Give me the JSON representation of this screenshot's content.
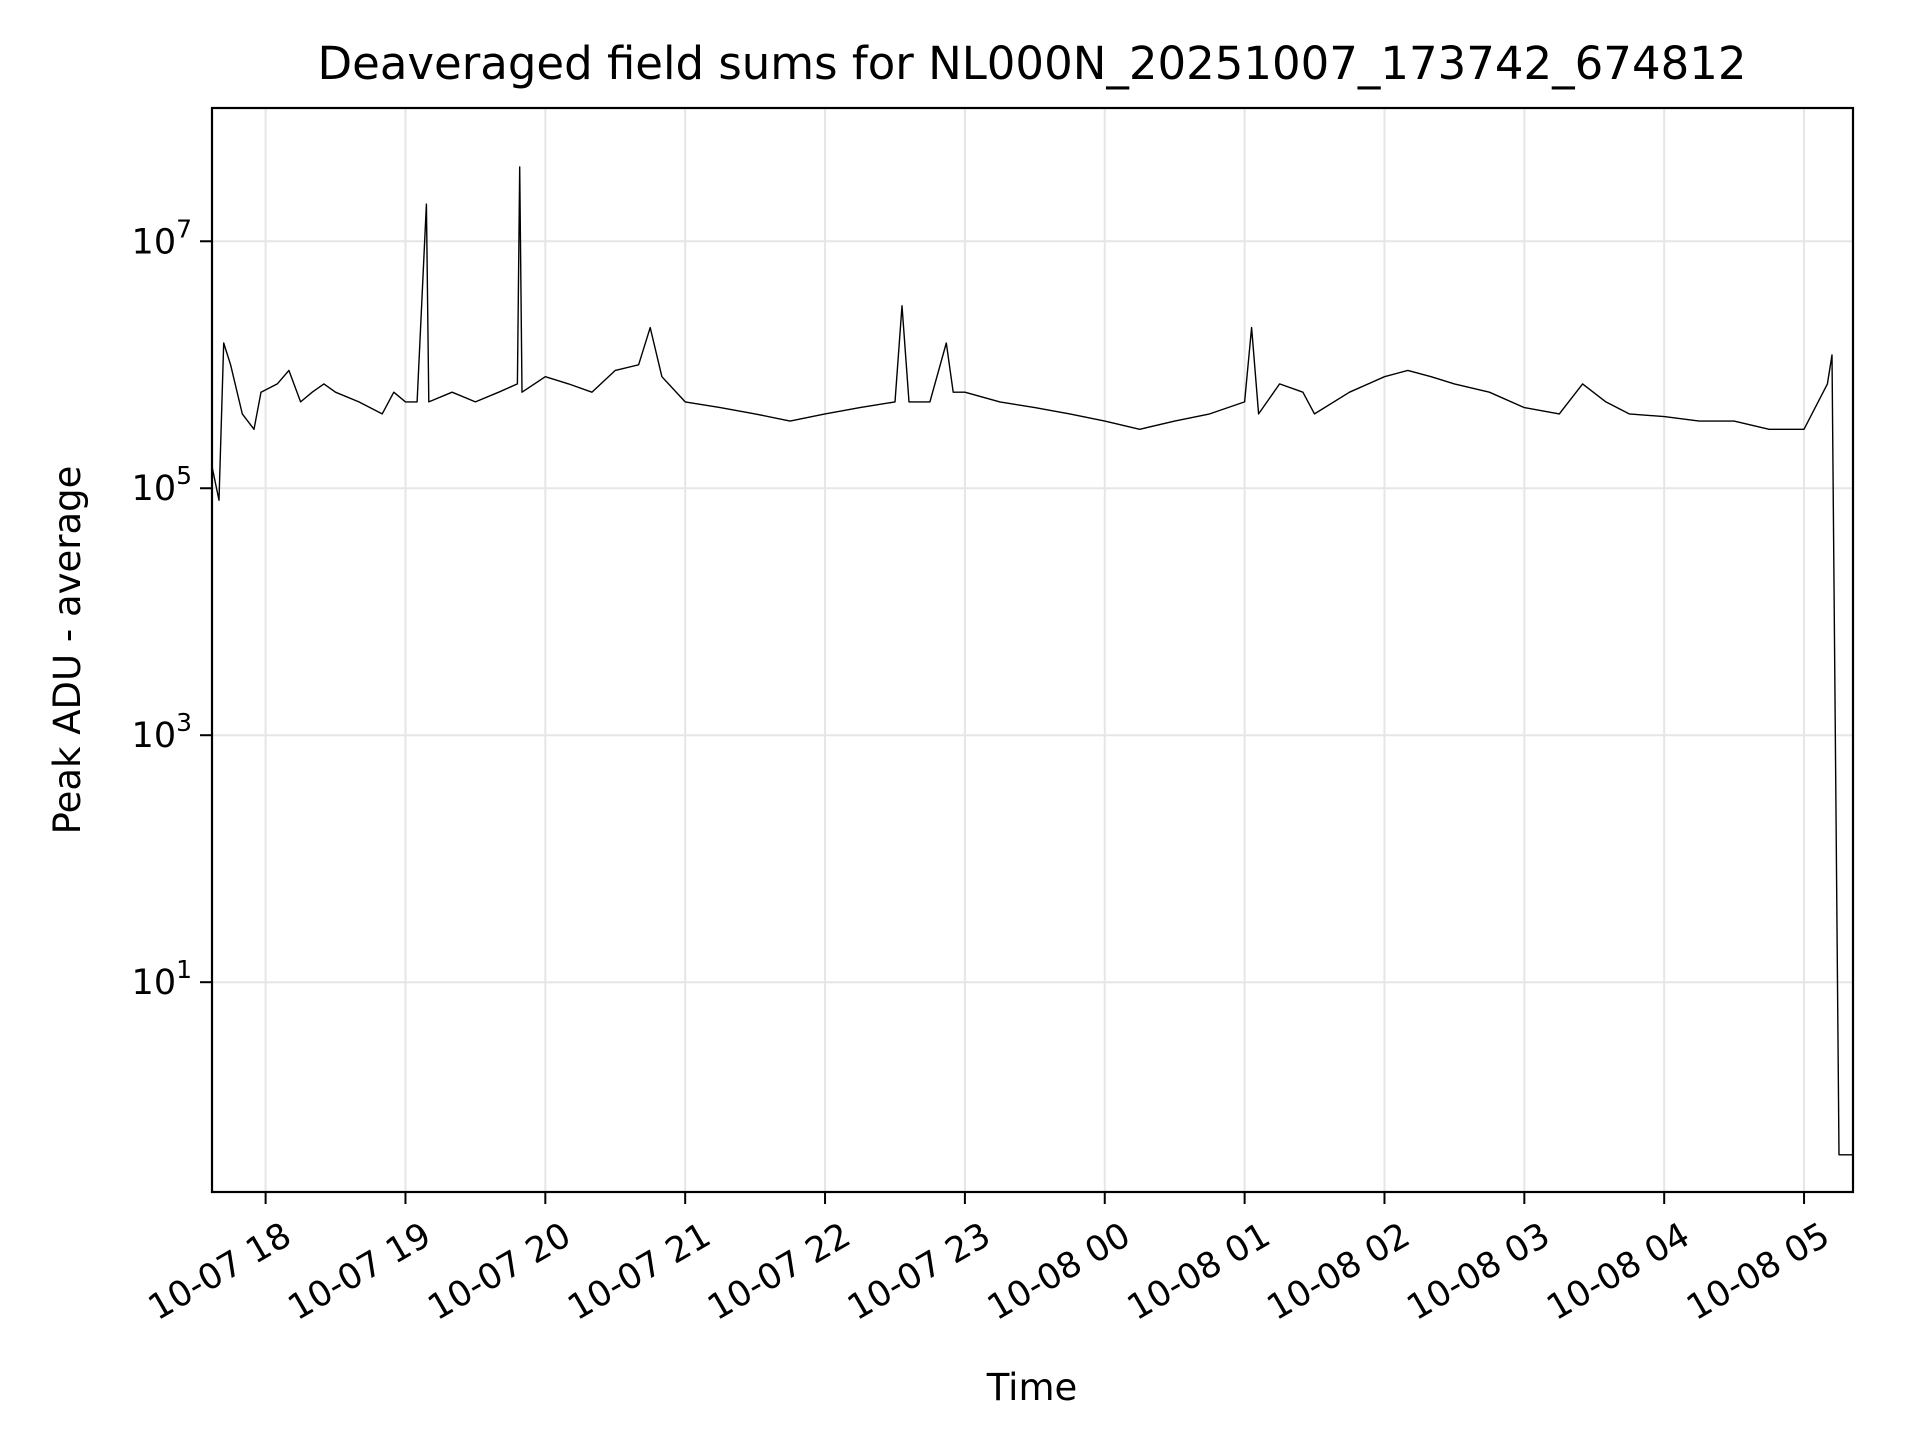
{
  "chart_data": {
    "type": "line",
    "title": "Deaveraged field sums for NL000N_20251007_173742_674812",
    "xlabel": "Time",
    "ylabel": "Peak ADU - average",
    "yscale": "log",
    "ylim": [
      0.2,
      120000000
    ],
    "xlim": [
      "2025-10-07 17:37",
      "2025-10-08 05:21"
    ],
    "grid": true,
    "line_color": "#000000",
    "yticks": [
      {
        "base": "10",
        "exp": "1",
        "value": 10
      },
      {
        "base": "10",
        "exp": "3",
        "value": 1000
      },
      {
        "base": "10",
        "exp": "5",
        "value": 100000
      },
      {
        "base": "10",
        "exp": "7",
        "value": 10000000
      }
    ],
    "xticks": [
      {
        "label": "10-07 18",
        "value": "2025-10-07 18:00"
      },
      {
        "label": "10-07 19",
        "value": "2025-10-07 19:00"
      },
      {
        "label": "10-07 20",
        "value": "2025-10-07 20:00"
      },
      {
        "label": "10-07 21",
        "value": "2025-10-07 21:00"
      },
      {
        "label": "10-07 22",
        "value": "2025-10-07 22:00"
      },
      {
        "label": "10-07 23",
        "value": "2025-10-07 23:00"
      },
      {
        "label": "10-08 00",
        "value": "2025-10-08 00:00"
      },
      {
        "label": "10-08 01",
        "value": "2025-10-08 01:00"
      },
      {
        "label": "10-08 02",
        "value": "2025-10-08 02:00"
      },
      {
        "label": "10-08 03",
        "value": "2025-10-08 03:00"
      },
      {
        "label": "10-08 04",
        "value": "2025-10-08 04:00"
      },
      {
        "label": "10-08 05",
        "value": "2025-10-08 05:00"
      }
    ],
    "series": [
      {
        "x": [
          "2025-10-07 17:37",
          "2025-10-07 17:40",
          "2025-10-07 17:42",
          "2025-10-07 17:45",
          "2025-10-07 17:50",
          "2025-10-07 17:55",
          "2025-10-07 17:58",
          "2025-10-07 18:05",
          "2025-10-07 18:10",
          "2025-10-07 18:15",
          "2025-10-07 18:20",
          "2025-10-07 18:25",
          "2025-10-07 18:30",
          "2025-10-07 18:40",
          "2025-10-07 18:50",
          "2025-10-07 18:55",
          "2025-10-07 19:00",
          "2025-10-07 19:05",
          "2025-10-07 19:09",
          "2025-10-07 19:10",
          "2025-10-07 19:20",
          "2025-10-07 19:30",
          "2025-10-07 19:40",
          "2025-10-07 19:48",
          "2025-10-07 19:49",
          "2025-10-07 19:50",
          "2025-10-07 20:00",
          "2025-10-07 20:10",
          "2025-10-07 20:20",
          "2025-10-07 20:30",
          "2025-10-07 20:40",
          "2025-10-07 20:45",
          "2025-10-07 20:50",
          "2025-10-07 21:00",
          "2025-10-07 21:15",
          "2025-10-07 21:30",
          "2025-10-07 21:45",
          "2025-10-07 22:00",
          "2025-10-07 22:15",
          "2025-10-07 22:30",
          "2025-10-07 22:33",
          "2025-10-07 22:36",
          "2025-10-07 22:45",
          "2025-10-07 22:52",
          "2025-10-07 22:55",
          "2025-10-07 23:00",
          "2025-10-07 23:15",
          "2025-10-07 23:30",
          "2025-10-07 23:45",
          "2025-10-08 00:00",
          "2025-10-08 00:15",
          "2025-10-08 00:30",
          "2025-10-08 00:45",
          "2025-10-08 01:00",
          "2025-10-08 01:03",
          "2025-10-08 01:06",
          "2025-10-08 01:15",
          "2025-10-08 01:25",
          "2025-10-08 01:30",
          "2025-10-08 01:45",
          "2025-10-08 02:00",
          "2025-10-08 02:10",
          "2025-10-08 02:20",
          "2025-10-08 02:30",
          "2025-10-08 02:45",
          "2025-10-08 03:00",
          "2025-10-08 03:15",
          "2025-10-08 03:25",
          "2025-10-08 03:35",
          "2025-10-08 03:45",
          "2025-10-08 04:00",
          "2025-10-08 04:15",
          "2025-10-08 04:30",
          "2025-10-08 04:45",
          "2025-10-08 05:00",
          "2025-10-08 05:10",
          "2025-10-08 05:12",
          "2025-10-08 05:15",
          "2025-10-08 05:21"
        ],
        "y": [
          150000,
          80000,
          1500000,
          1000000,
          400000,
          300000,
          600000,
          700000,
          900000,
          500000,
          600000,
          700000,
          600000,
          500000,
          400000,
          600000,
          500000,
          500000,
          20000000,
          500000,
          600000,
          500000,
          600000,
          700000,
          40000000,
          600000,
          800000,
          700000,
          600000,
          900000,
          1000000,
          2000000,
          800000,
          500000,
          450000,
          400000,
          350000,
          400000,
          450000,
          500000,
          3000000,
          500000,
          500000,
          1500000,
          600000,
          600000,
          500000,
          450000,
          400000,
          350000,
          300000,
          350000,
          400000,
          500000,
          2000000,
          400000,
          700000,
          600000,
          400000,
          600000,
          800000,
          900000,
          800000,
          700000,
          600000,
          450000,
          400000,
          700000,
          500000,
          400000,
          380000,
          350000,
          350000,
          300000,
          300000,
          700000,
          1200000,
          0.4,
          0.4
        ]
      }
    ]
  }
}
